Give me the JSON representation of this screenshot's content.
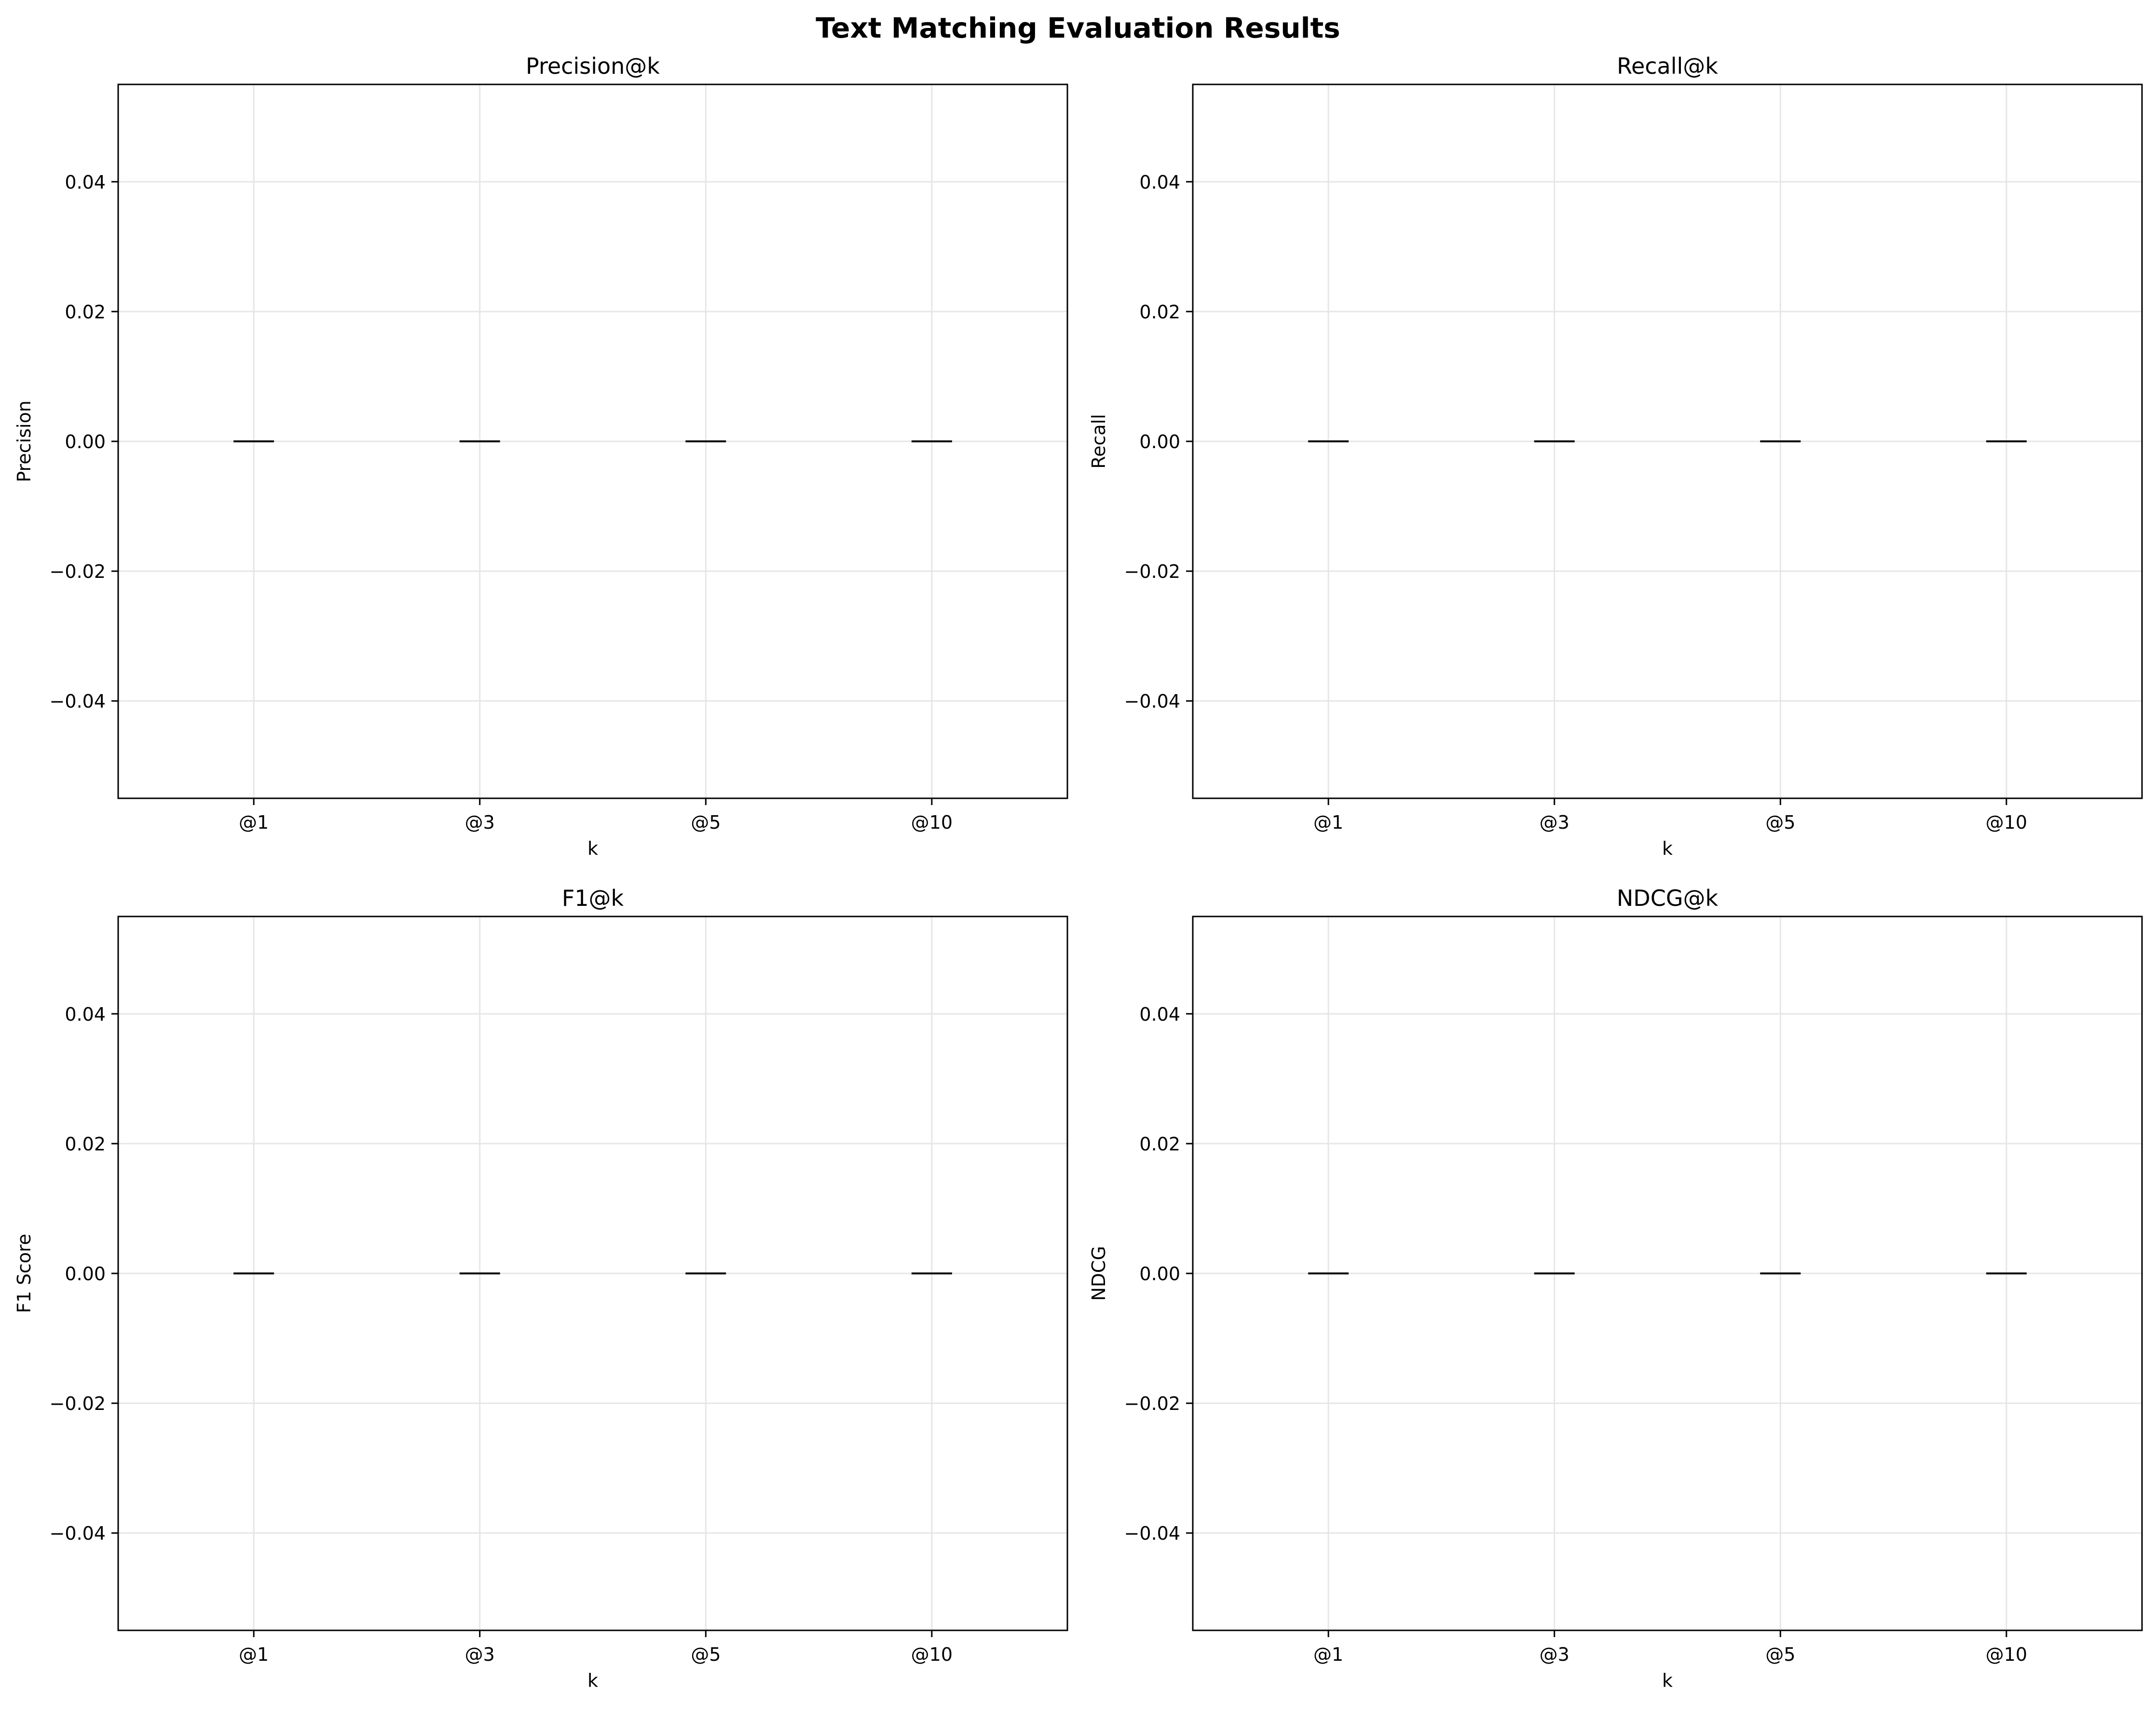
{
  "figure": {
    "title": "Text Matching Evaluation Results"
  },
  "chart_data": [
    {
      "type": "box",
      "title": "Precision@k",
      "xlabel": "k",
      "ylabel": "Precision",
      "categories": [
        "@1",
        "@3",
        "@5",
        "@10"
      ],
      "values": [
        0,
        0,
        0,
        0
      ],
      "ylim": [
        -0.055,
        0.055
      ],
      "yticks": [
        -0.04,
        -0.02,
        0.0,
        0.02,
        0.04
      ],
      "ytick_labels": [
        "−0.04",
        "−0.02",
        "0.00",
        "0.02",
        "0.04"
      ],
      "grid": true
    },
    {
      "type": "box",
      "title": "Recall@k",
      "xlabel": "k",
      "ylabel": "Recall",
      "categories": [
        "@1",
        "@3",
        "@5",
        "@10"
      ],
      "values": [
        0,
        0,
        0,
        0
      ],
      "ylim": [
        -0.055,
        0.055
      ],
      "yticks": [
        -0.04,
        -0.02,
        0.0,
        0.02,
        0.04
      ],
      "ytick_labels": [
        "−0.04",
        "−0.02",
        "0.00",
        "0.02",
        "0.04"
      ],
      "grid": true
    },
    {
      "type": "box",
      "title": "F1@k",
      "xlabel": "k",
      "ylabel": "F1 Score",
      "categories": [
        "@1",
        "@3",
        "@5",
        "@10"
      ],
      "values": [
        0,
        0,
        0,
        0
      ],
      "ylim": [
        -0.055,
        0.055
      ],
      "yticks": [
        -0.04,
        -0.02,
        0.0,
        0.02,
        0.04
      ],
      "ytick_labels": [
        "−0.04",
        "−0.02",
        "0.00",
        "0.02",
        "0.04"
      ],
      "grid": true
    },
    {
      "type": "box",
      "title": "NDCG@k",
      "xlabel": "k",
      "ylabel": "NDCG",
      "categories": [
        "@1",
        "@3",
        "@5",
        "@10"
      ],
      "values": [
        0,
        0,
        0,
        0
      ],
      "ylim": [
        -0.055,
        0.055
      ],
      "yticks": [
        -0.04,
        -0.02,
        0.0,
        0.02,
        0.04
      ],
      "ytick_labels": [
        "−0.04",
        "−0.02",
        "0.00",
        "0.02",
        "0.04"
      ],
      "grid": true
    }
  ],
  "colors": {
    "axes": "#000000",
    "grid": "#e6e6e6",
    "marker": "#000000",
    "background": "#ffffff"
  }
}
